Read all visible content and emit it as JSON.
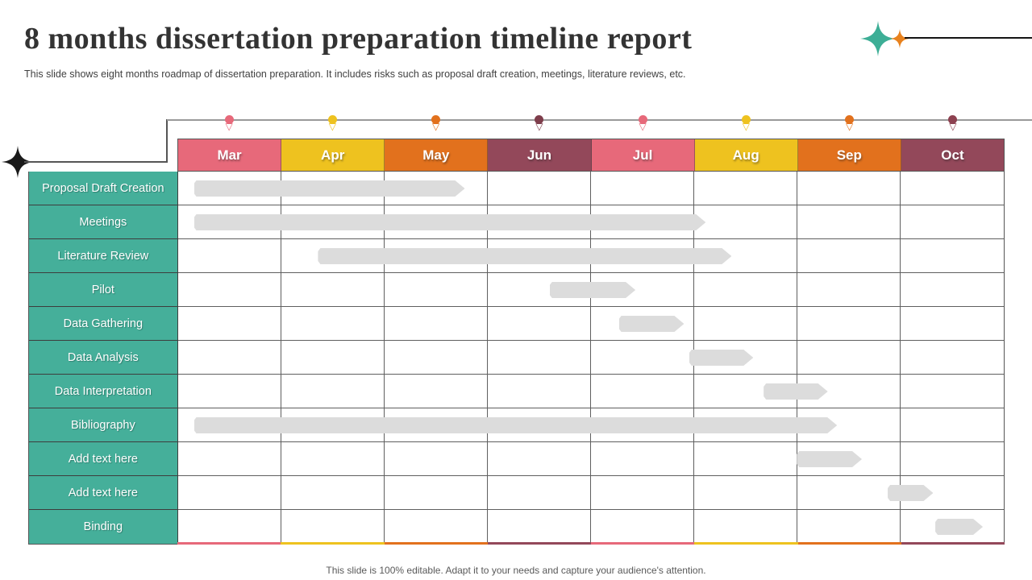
{
  "slide": {
    "title": "8 months dissertation preparation timeline report",
    "subtitle": "This slide shows eight months roadmap of dissertation preparation. It includes risks such as proposal draft creation, meetings, literature reviews, etc.",
    "footer": "This slide is 100% editable.  Adapt it to your needs and capture your audience's attention."
  },
  "colors": {
    "label_bg": "#45AF9A",
    "bar_fill": "#DCDCDC",
    "grid_line": "#5F5F5F",
    "rail_line": "#9A9A9A",
    "teal_sparkle": "#3DAE96",
    "orange_sparkle": "#E8821E",
    "black_sparkle": "#1A1A1A"
  },
  "chart_data": {
    "type": "gantt",
    "title": "8 months dissertation preparation timeline report",
    "x_axis": "months",
    "axis_range_note": "month units: 0 = start of Mar, 8 = end of Oct",
    "bar_color": "#DCDCDC",
    "months": [
      {
        "label": "Mar",
        "color": "#E7697A",
        "marker_color": "#E7697A"
      },
      {
        "label": "Apr",
        "color": "#EEC21F",
        "marker_color": "#EEC21F"
      },
      {
        "label": "May",
        "color": "#E2711D",
        "marker_color": "#E2711D"
      },
      {
        "label": "Jun",
        "color": "#93485A",
        "marker_color": "#7E3D4B"
      },
      {
        "label": "Jul",
        "color": "#E7697A",
        "marker_color": "#E7697A"
      },
      {
        "label": "Aug",
        "color": "#EEC21F",
        "marker_color": "#EEC21F"
      },
      {
        "label": "Sep",
        "color": "#E2711D",
        "marker_color": "#E2711D"
      },
      {
        "label": "Oct",
        "color": "#93485A",
        "marker_color": "#8D4150"
      }
    ],
    "tasks": [
      {
        "name": "Proposal Draft Creation",
        "start": 0.16,
        "end": 2.78,
        "placeholder": false
      },
      {
        "name": "Meetings",
        "start": 0.16,
        "end": 5.11,
        "placeholder": false
      },
      {
        "name": "Literature Review",
        "start": 1.36,
        "end": 5.36,
        "placeholder": false
      },
      {
        "name": "Pilot",
        "start": 3.6,
        "end": 4.43,
        "placeholder": false
      },
      {
        "name": "Data Gathering",
        "start": 4.27,
        "end": 4.9,
        "placeholder": false
      },
      {
        "name": "Data Analysis",
        "start": 4.95,
        "end": 5.57,
        "placeholder": false
      },
      {
        "name": "Data Interpretation",
        "start": 5.67,
        "end": 6.29,
        "placeholder": false
      },
      {
        "name": "Bibliography",
        "start": 0.16,
        "end": 6.38,
        "placeholder": false
      },
      {
        "name": "Add text here",
        "start": 5.99,
        "end": 6.62,
        "placeholder": true
      },
      {
        "name": "Add text here",
        "start": 6.87,
        "end": 7.31,
        "placeholder": true
      },
      {
        "name": "Binding",
        "start": 7.33,
        "end": 7.79,
        "placeholder": false
      }
    ]
  }
}
